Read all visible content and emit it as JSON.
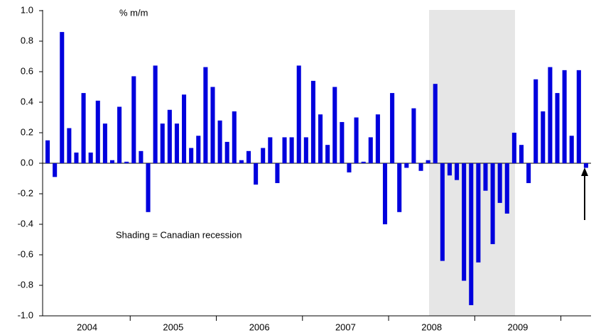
{
  "chart_data": {
    "type": "bar",
    "y_label": "% m/m",
    "annotation": "Shading = Canadian recession",
    "year_labels": [
      "2004",
      "2005",
      "2006",
      "2007",
      "2008",
      "2009"
    ],
    "categories": [
      null,
      null,
      null,
      null,
      null,
      null,
      null,
      null,
      null,
      null,
      null,
      null,
      null,
      null,
      null,
      null,
      null,
      null,
      null,
      null,
      null,
      null,
      null,
      null,
      null,
      null,
      null,
      null,
      null,
      null,
      null,
      null,
      null,
      null,
      null,
      null,
      null,
      null,
      null,
      null,
      null,
      null,
      null,
      null,
      null,
      null,
      null,
      null,
      null,
      null,
      null,
      null,
      null,
      null,
      null,
      null,
      null,
      null,
      null,
      null,
      null,
      null,
      null,
      null,
      null,
      null,
      null,
      null,
      null,
      null,
      null,
      null,
      null,
      null,
      null,
      null
    ],
    "values": [
      0.15,
      -0.09,
      0.86,
      0.23,
      0.07,
      0.46,
      0.07,
      0.41,
      0.26,
      0.02,
      0.37,
      0.01,
      0.57,
      0.08,
      -0.32,
      0.64,
      0.26,
      0.35,
      0.26,
      0.45,
      0.1,
      0.18,
      0.63,
      0.5,
      0.28,
      0.14,
      0.34,
      0.02,
      0.08,
      -0.14,
      0.1,
      0.17,
      -0.13,
      0.17,
      0.17,
      0.64,
      0.17,
      0.54,
      0.32,
      0.12,
      0.5,
      0.27,
      -0.06,
      0.3,
      0.01,
      0.17,
      0.32,
      -0.4,
      0.46,
      -0.32,
      -0.03,
      0.36,
      -0.05,
      0.02,
      0.52,
      -0.64,
      -0.08,
      -0.11,
      -0.77,
      -0.93,
      -0.65,
      -0.18,
      -0.53,
      -0.26,
      -0.33,
      0.2,
      0.12,
      -0.13,
      0.55,
      0.34,
      0.63,
      0.46,
      0.61,
      0.18,
      0.61,
      -0.03
    ],
    "color": "#0000dd",
    "ylim": [
      -1.0,
      1.0
    ],
    "yticks": [
      {
        "value": 1.0,
        "label": "1.0"
      },
      0.8,
      0.6,
      0.4,
      0.2,
      {
        "value": 0.0,
        "label": "0.0"
      },
      -0.2,
      -0.4,
      -0.6,
      -0.8,
      {
        "value": -1.0,
        "label": "-1.0"
      }
    ],
    "grid": false
  }
}
